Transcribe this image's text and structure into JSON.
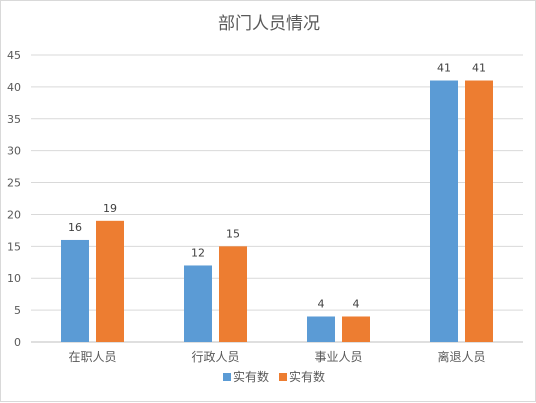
{
  "chart_data": {
    "type": "bar",
    "title": "部门人员情况",
    "categories": [
      "在职人员",
      "行政人员",
      "事业人员",
      "离退人员"
    ],
    "series": [
      {
        "name": "实有数",
        "color": "#5B9BD5",
        "values": [
          16,
          12,
          4,
          41
        ]
      },
      {
        "name": "实有数",
        "color": "#ED7D31",
        "values": [
          19,
          15,
          4,
          41
        ]
      }
    ],
    "ylim": [
      0,
      45
    ],
    "yticks": [
      0,
      5,
      10,
      15,
      20,
      25,
      30,
      35,
      40,
      45
    ],
    "xlabel": "",
    "ylabel": "",
    "grid": true,
    "legend_position": "bottom",
    "data_labels": true
  }
}
